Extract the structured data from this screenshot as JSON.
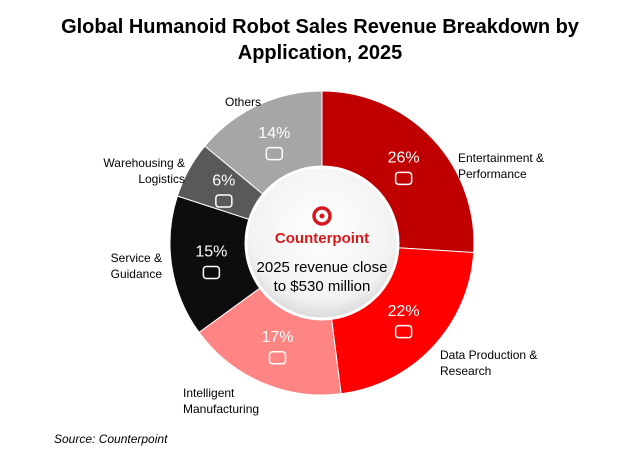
{
  "chart_data": {
    "type": "donut",
    "title": "Global Humanoid Robot Sales Revenue Breakdown by Application, 2025",
    "categories": [
      "Entertainment & Performance",
      "Data Production & Research",
      "Intelligent Manufacturing",
      "Service & Guidance",
      "Warehousing & Logistics",
      "Others"
    ],
    "values": [
      26,
      22,
      17,
      15,
      6,
      14
    ],
    "value_labels": [
      "26%",
      "22%",
      "17%",
      "15%",
      "6%",
      "14%"
    ],
    "colors": [
      "#c00000",
      "#ff0000",
      "#ff8585",
      "#0d0d0d",
      "#595959",
      "#a6a6a6"
    ],
    "center_brand": "Counterpoint",
    "center_text": "2025 revenue close to $530 million",
    "source": "Source: Counterpoint"
  }
}
